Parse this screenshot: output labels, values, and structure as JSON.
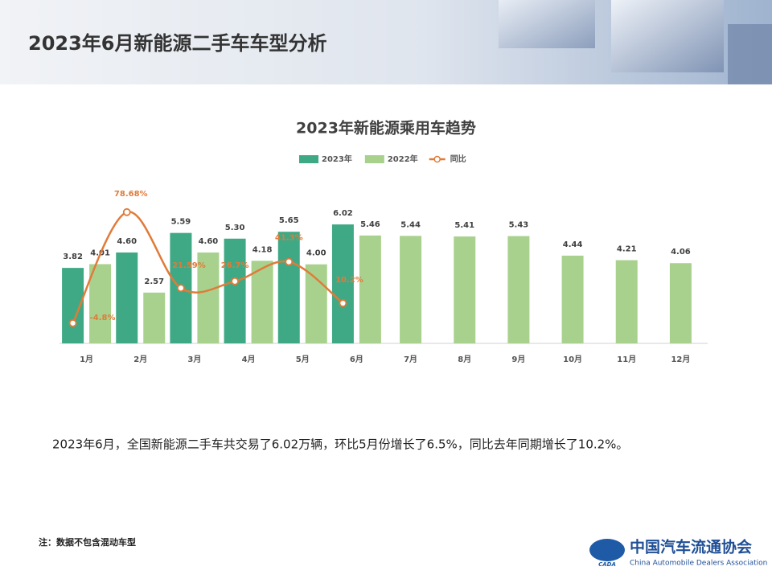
{
  "header": {
    "title": "2023年6月新能源二手车车型分析"
  },
  "chart_data": {
    "type": "bar",
    "title": "2023年新能源乘用车趋势",
    "categories": [
      "1月",
      "2月",
      "3月",
      "4月",
      "5月",
      "6月",
      "7月",
      "8月",
      "9月",
      "10月",
      "11月",
      "12月"
    ],
    "ylim": [
      0,
      7
    ],
    "y2lim": [
      -20,
      84
    ],
    "grid": false,
    "legend": "top",
    "series": [
      {
        "name": "2023年",
        "type": "bar",
        "color": "#3fa985",
        "values": [
          3.82,
          4.6,
          5.59,
          5.3,
          5.65,
          6.02,
          null,
          null,
          null,
          null,
          null,
          null
        ],
        "value_labels": [
          "3.82",
          "4.60",
          "5.59",
          "5.30",
          "5.65",
          "6.02",
          null,
          null,
          null,
          null,
          null,
          null
        ]
      },
      {
        "name": "2022年",
        "type": "bar",
        "color": "#a9d18e",
        "values": [
          4.01,
          2.57,
          4.6,
          4.18,
          4.0,
          5.46,
          5.44,
          5.41,
          5.43,
          4.44,
          4.21,
          4.06
        ],
        "value_labels": [
          "4.01",
          "2.57",
          "4.60",
          "4.18",
          "4.00",
          "5.46",
          "5.44",
          "5.41",
          "5.43",
          "4.44",
          "4.21",
          "4.06"
        ]
      },
      {
        "name": "同比",
        "type": "line",
        "axis": "y2",
        "color": "#e07b39",
        "values": [
          -4.8,
          78.68,
          21.59,
          26.7,
          41.3,
          10.2,
          null,
          null,
          null,
          null,
          null,
          null
        ],
        "value_labels": [
          "-4.8%",
          "78.68%",
          "21.59%",
          "26.7%",
          "41.3%",
          "10.2%",
          null,
          null,
          null,
          null,
          null,
          null
        ]
      }
    ]
  },
  "body": {
    "summary": "2023年6月，全国新能源二手车共交易了6.02万辆，环比5月份增长了6.5%，同比去年同期增长了10.2%。",
    "note": "注：数据不包含混动车型"
  },
  "logo": {
    "name": "中国汽车流通协会",
    "english": "China Automobile Dealers Association",
    "mark": "CADA"
  }
}
